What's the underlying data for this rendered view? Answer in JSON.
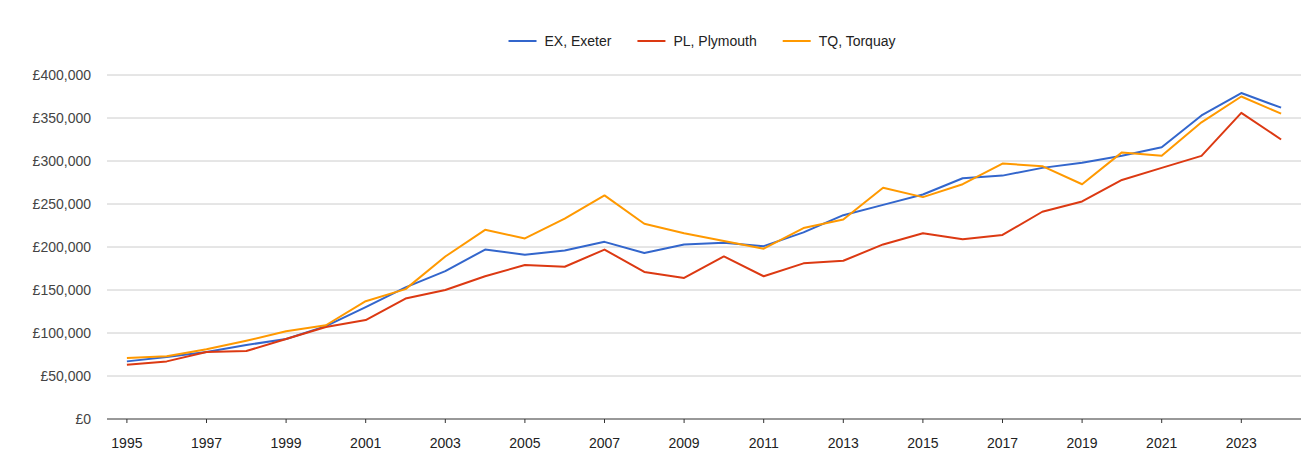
{
  "chart_data": {
    "type": "line",
    "x": [
      1995,
      1996,
      1997,
      1998,
      1999,
      2000,
      2001,
      2002,
      2003,
      2004,
      2005,
      2006,
      2007,
      2008,
      2009,
      2010,
      2011,
      2012,
      2013,
      2014,
      2015,
      2016,
      2017,
      2018,
      2019,
      2020,
      2021,
      2022,
      2023,
      2024
    ],
    "xlim": [
      1994.5,
      2024.5
    ],
    "xticks": [
      1995,
      1997,
      1999,
      2001,
      2003,
      2005,
      2007,
      2009,
      2011,
      2013,
      2015,
      2017,
      2019,
      2021,
      2023
    ],
    "ylim": [
      0,
      400000
    ],
    "yticks": [
      {
        "value": 0,
        "label": "£0"
      },
      {
        "value": 50000,
        "label": "£50,000"
      },
      {
        "value": 100000,
        "label": "£100,000"
      },
      {
        "value": 150000,
        "label": "£150,000"
      },
      {
        "value": 200000,
        "label": "£200,000"
      },
      {
        "value": 250000,
        "label": "£250,000"
      },
      {
        "value": 300000,
        "label": "£300,000"
      },
      {
        "value": 350000,
        "label": "£350,000"
      },
      {
        "value": 400000,
        "label": "£400,000"
      }
    ],
    "grid": true,
    "legend": "top",
    "series": [
      {
        "name": "EX, Exeter",
        "color": "#3366cc",
        "values": [
          67000,
          72000,
          78000,
          86000,
          93000,
          108000,
          130000,
          153000,
          172000,
          197000,
          191000,
          196000,
          206000,
          193000,
          203000,
          205000,
          201000,
          217000,
          237000,
          249000,
          261000,
          280000,
          283000,
          292000,
          298000,
          306000,
          316000,
          353000,
          379000,
          362000
        ]
      },
      {
        "name": "PL, Plymouth",
        "color": "#dc3912",
        "values": [
          63000,
          67000,
          78000,
          79000,
          93000,
          107000,
          115000,
          140000,
          150000,
          166000,
          179000,
          177000,
          197000,
          171000,
          164000,
          189000,
          166000,
          181000,
          184000,
          203000,
          216000,
          209000,
          214000,
          241000,
          253000,
          278000,
          292000,
          306000,
          356000,
          325000
        ]
      },
      {
        "name": "TQ, Torquay",
        "color": "#ff9900",
        "values": [
          71000,
          73000,
          81000,
          91000,
          102000,
          109000,
          137000,
          151000,
          189000,
          220000,
          210000,
          233000,
          260000,
          227000,
          216000,
          207000,
          198000,
          222000,
          232000,
          269000,
          258000,
          273000,
          297000,
          294000,
          273000,
          310000,
          306000,
          345000,
          375000,
          355000
        ]
      }
    ]
  }
}
